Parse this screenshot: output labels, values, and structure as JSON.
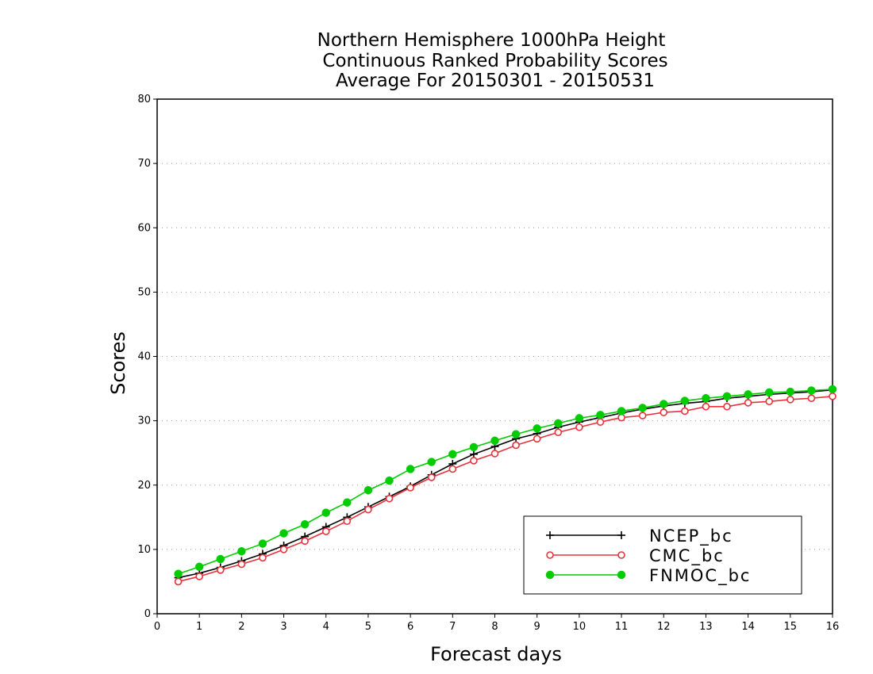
{
  "chart_data": {
    "type": "line",
    "title": "Northern Hemisphere 1000hPa Height",
    "subtitle": "Continuous Ranked Probability Scores",
    "subtitle2": "Average For 20150301 - 20150531",
    "xlabel": "Forecast days",
    "ylabel": "Scores",
    "xlim": [
      0,
      16
    ],
    "ylim": [
      0,
      80
    ],
    "xticks": [
      "0",
      "1",
      "2",
      "3",
      "4",
      "5",
      "6",
      "7",
      "8",
      "9",
      "10",
      "11",
      "12",
      "13",
      "14",
      "15",
      "16"
    ],
    "yticks": [
      "0",
      "10",
      "20",
      "30",
      "40",
      "50",
      "60",
      "70",
      "80"
    ],
    "grid": "horizontal dotted",
    "legend_position": "bottom-right",
    "x": [
      0.5,
      1,
      1.5,
      2,
      2.5,
      3,
      3.5,
      4,
      4.5,
      5,
      5.5,
      6,
      6.5,
      7,
      7.5,
      8,
      8.5,
      9,
      9.5,
      10,
      10.5,
      11,
      11.5,
      12,
      12.5,
      13,
      13.5,
      14,
      14.5,
      15,
      15.5,
      16
    ],
    "series": [
      {
        "name": "NCEP_bc",
        "color": "#000000",
        "marker": "plus",
        "values": [
          5.6,
          6.3,
          7.2,
          8.2,
          9.3,
          10.6,
          12.0,
          13.5,
          15.0,
          16.6,
          18.2,
          19.8,
          21.6,
          23.3,
          24.8,
          26.0,
          27.2,
          28.0,
          29.0,
          29.8,
          30.5,
          31.2,
          31.8,
          32.3,
          32.7,
          33.0,
          33.5,
          33.8,
          34.1,
          34.3,
          34.5,
          34.8
        ]
      },
      {
        "name": "CMC_bc",
        "color": "#e8313a",
        "marker": "open-circle",
        "values": [
          5.0,
          5.8,
          6.8,
          7.7,
          8.7,
          10.0,
          11.3,
          12.8,
          14.4,
          16.2,
          17.9,
          19.6,
          21.2,
          22.5,
          23.8,
          24.9,
          26.2,
          27.2,
          28.2,
          29.0,
          29.8,
          30.5,
          30.8,
          31.3,
          31.5,
          32.2,
          32.2,
          32.8,
          33.0,
          33.3,
          33.5,
          33.8
        ]
      },
      {
        "name": "FNMOC_bc",
        "color": "#00cc00",
        "marker": "filled-circle",
        "values": [
          6.2,
          7.3,
          8.5,
          9.7,
          10.9,
          12.5,
          13.9,
          15.7,
          17.3,
          19.2,
          20.7,
          22.5,
          23.6,
          24.8,
          25.9,
          26.9,
          27.9,
          28.8,
          29.6,
          30.4,
          30.9,
          31.5,
          32.0,
          32.6,
          33.1,
          33.5,
          33.8,
          34.1,
          34.4,
          34.5,
          34.7,
          34.9
        ]
      }
    ]
  }
}
